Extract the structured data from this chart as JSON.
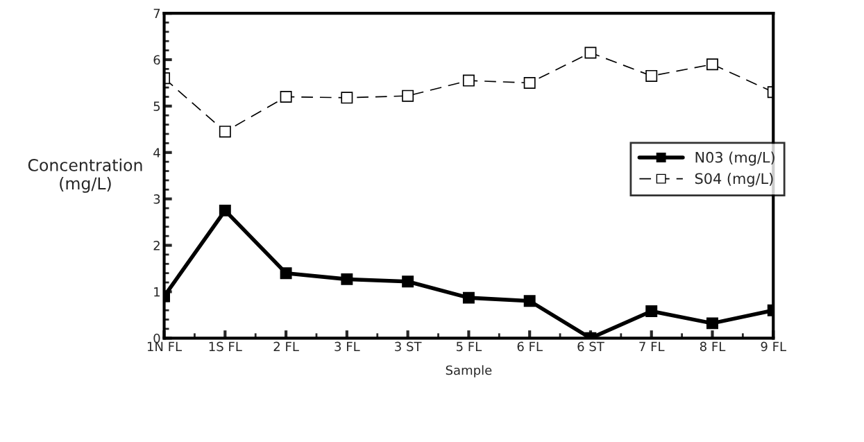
{
  "chart_data": {
    "type": "line",
    "xlabel": "Sample",
    "ylabel": "Concentration\n(mg/L)",
    "categories": [
      "1N FL",
      "1S FL",
      "2 FL",
      "3 FL",
      "3 ST",
      "5 FL",
      "6 FL",
      "6 ST",
      "7 FL",
      "8 FL",
      "9 FL"
    ],
    "series": [
      {
        "name": "N03 (mg/L)",
        "color": "#000000",
        "marker": "square",
        "line_style": "solid",
        "values": [
          0.9,
          2.75,
          1.4,
          1.27,
          1.22,
          0.87,
          0.8,
          0.0,
          0.58,
          0.32,
          0.6
        ]
      },
      {
        "name": "S04 (mg/L)",
        "color": "#000000",
        "marker": "square",
        "line_style": "dashed",
        "values": [
          5.6,
          4.45,
          5.2,
          5.18,
          5.22,
          5.55,
          5.5,
          6.15,
          5.65,
          5.9,
          5.3
        ]
      }
    ],
    "ylim": [
      0,
      7
    ],
    "yticks": [
      0,
      1,
      2,
      3,
      4,
      5,
      6,
      7
    ],
    "grid": false,
    "legend": "right"
  }
}
